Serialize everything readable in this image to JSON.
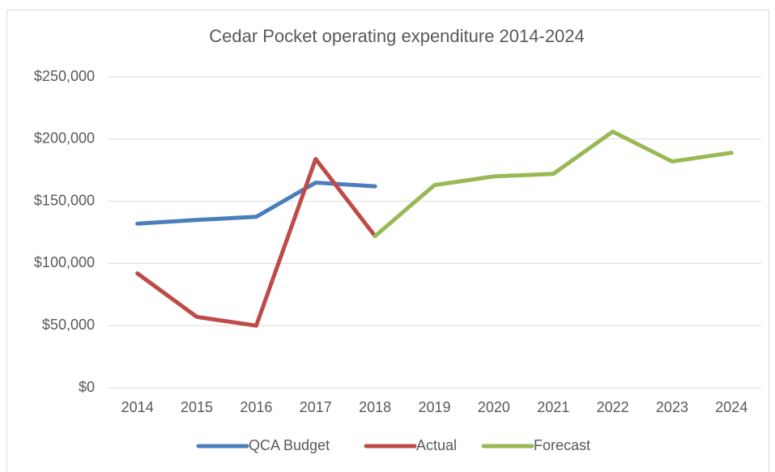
{
  "chart_data": {
    "type": "line",
    "title": "Cedar Pocket operating expenditure 2014-2024",
    "categories": [
      "2014",
      "2015",
      "2016",
      "2017",
      "2018",
      "2019",
      "2020",
      "2021",
      "2022",
      "2023",
      "2024"
    ],
    "series": [
      {
        "name": "QCA Budget",
        "color": "#4a7ebb",
        "values": [
          132000,
          135000,
          137500,
          165000,
          162000,
          null,
          null,
          null,
          null,
          null,
          null
        ]
      },
      {
        "name": "Actual",
        "color": "#be4b48",
        "values": [
          92000,
          57000,
          50000,
          184000,
          122000,
          null,
          null,
          null,
          null,
          null,
          null
        ]
      },
      {
        "name": "Forecast",
        "color": "#98b954",
        "values": [
          null,
          null,
          null,
          null,
          122000,
          163000,
          170000,
          172000,
          206000,
          182000,
          189000
        ]
      }
    ],
    "ylim": [
      0,
      250000
    ],
    "yticks": [
      {
        "value": 0,
        "label": "$0"
      },
      {
        "value": 50000,
        "label": "$50,000"
      },
      {
        "value": 100000,
        "label": "$100,000"
      },
      {
        "value": 150000,
        "label": "$150,000"
      },
      {
        "value": 200000,
        "label": "$200,000"
      },
      {
        "value": 250000,
        "label": "$250,000"
      }
    ],
    "grid": true,
    "legend": "bottom"
  }
}
